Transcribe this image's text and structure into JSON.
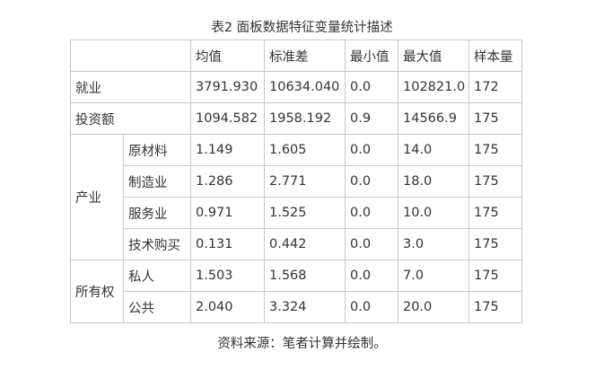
{
  "title": "表2 面板数据特征变量统计描述",
  "headers": [
    "均值",
    "标准差",
    "最小值",
    "最大值",
    "样本量"
  ],
  "rows": [
    {
      "group": "就业",
      "values": [
        "3791.930",
        "10634.040",
        "0.0",
        "102821.0",
        "172"
      ]
    },
    {
      "group": "投资额",
      "values": [
        "1094.582",
        "1958.192",
        "0.9",
        "14566.9",
        "175"
      ]
    }
  ],
  "industry": {
    "group": "产业",
    "items": [
      {
        "label": "原材料",
        "values": [
          "1.149",
          "1.605",
          "0.0",
          "14.0",
          "175"
        ]
      },
      {
        "label": "制造业",
        "values": [
          "1.286",
          "2.771",
          "0.0",
          "18.0",
          "175"
        ]
      },
      {
        "label": "服务业",
        "values": [
          "0.971",
          "1.525",
          "0.0",
          "10.0",
          "175"
        ]
      },
      {
        "label": "技术购买",
        "values": [
          "0.131",
          "0.442",
          "0.0",
          "3.0",
          "175"
        ]
      }
    ]
  },
  "ownership": {
    "group": "所有权",
    "items": [
      {
        "label": "私人",
        "values": [
          "1.503",
          "1.568",
          "0.0",
          "7.0",
          "175"
        ]
      },
      {
        "label": "公共",
        "values": [
          "2.040",
          "3.324",
          "0.0",
          "20.0",
          "175"
        ]
      }
    ]
  },
  "footnote": "资料来源：笔者计算并绘制。"
}
